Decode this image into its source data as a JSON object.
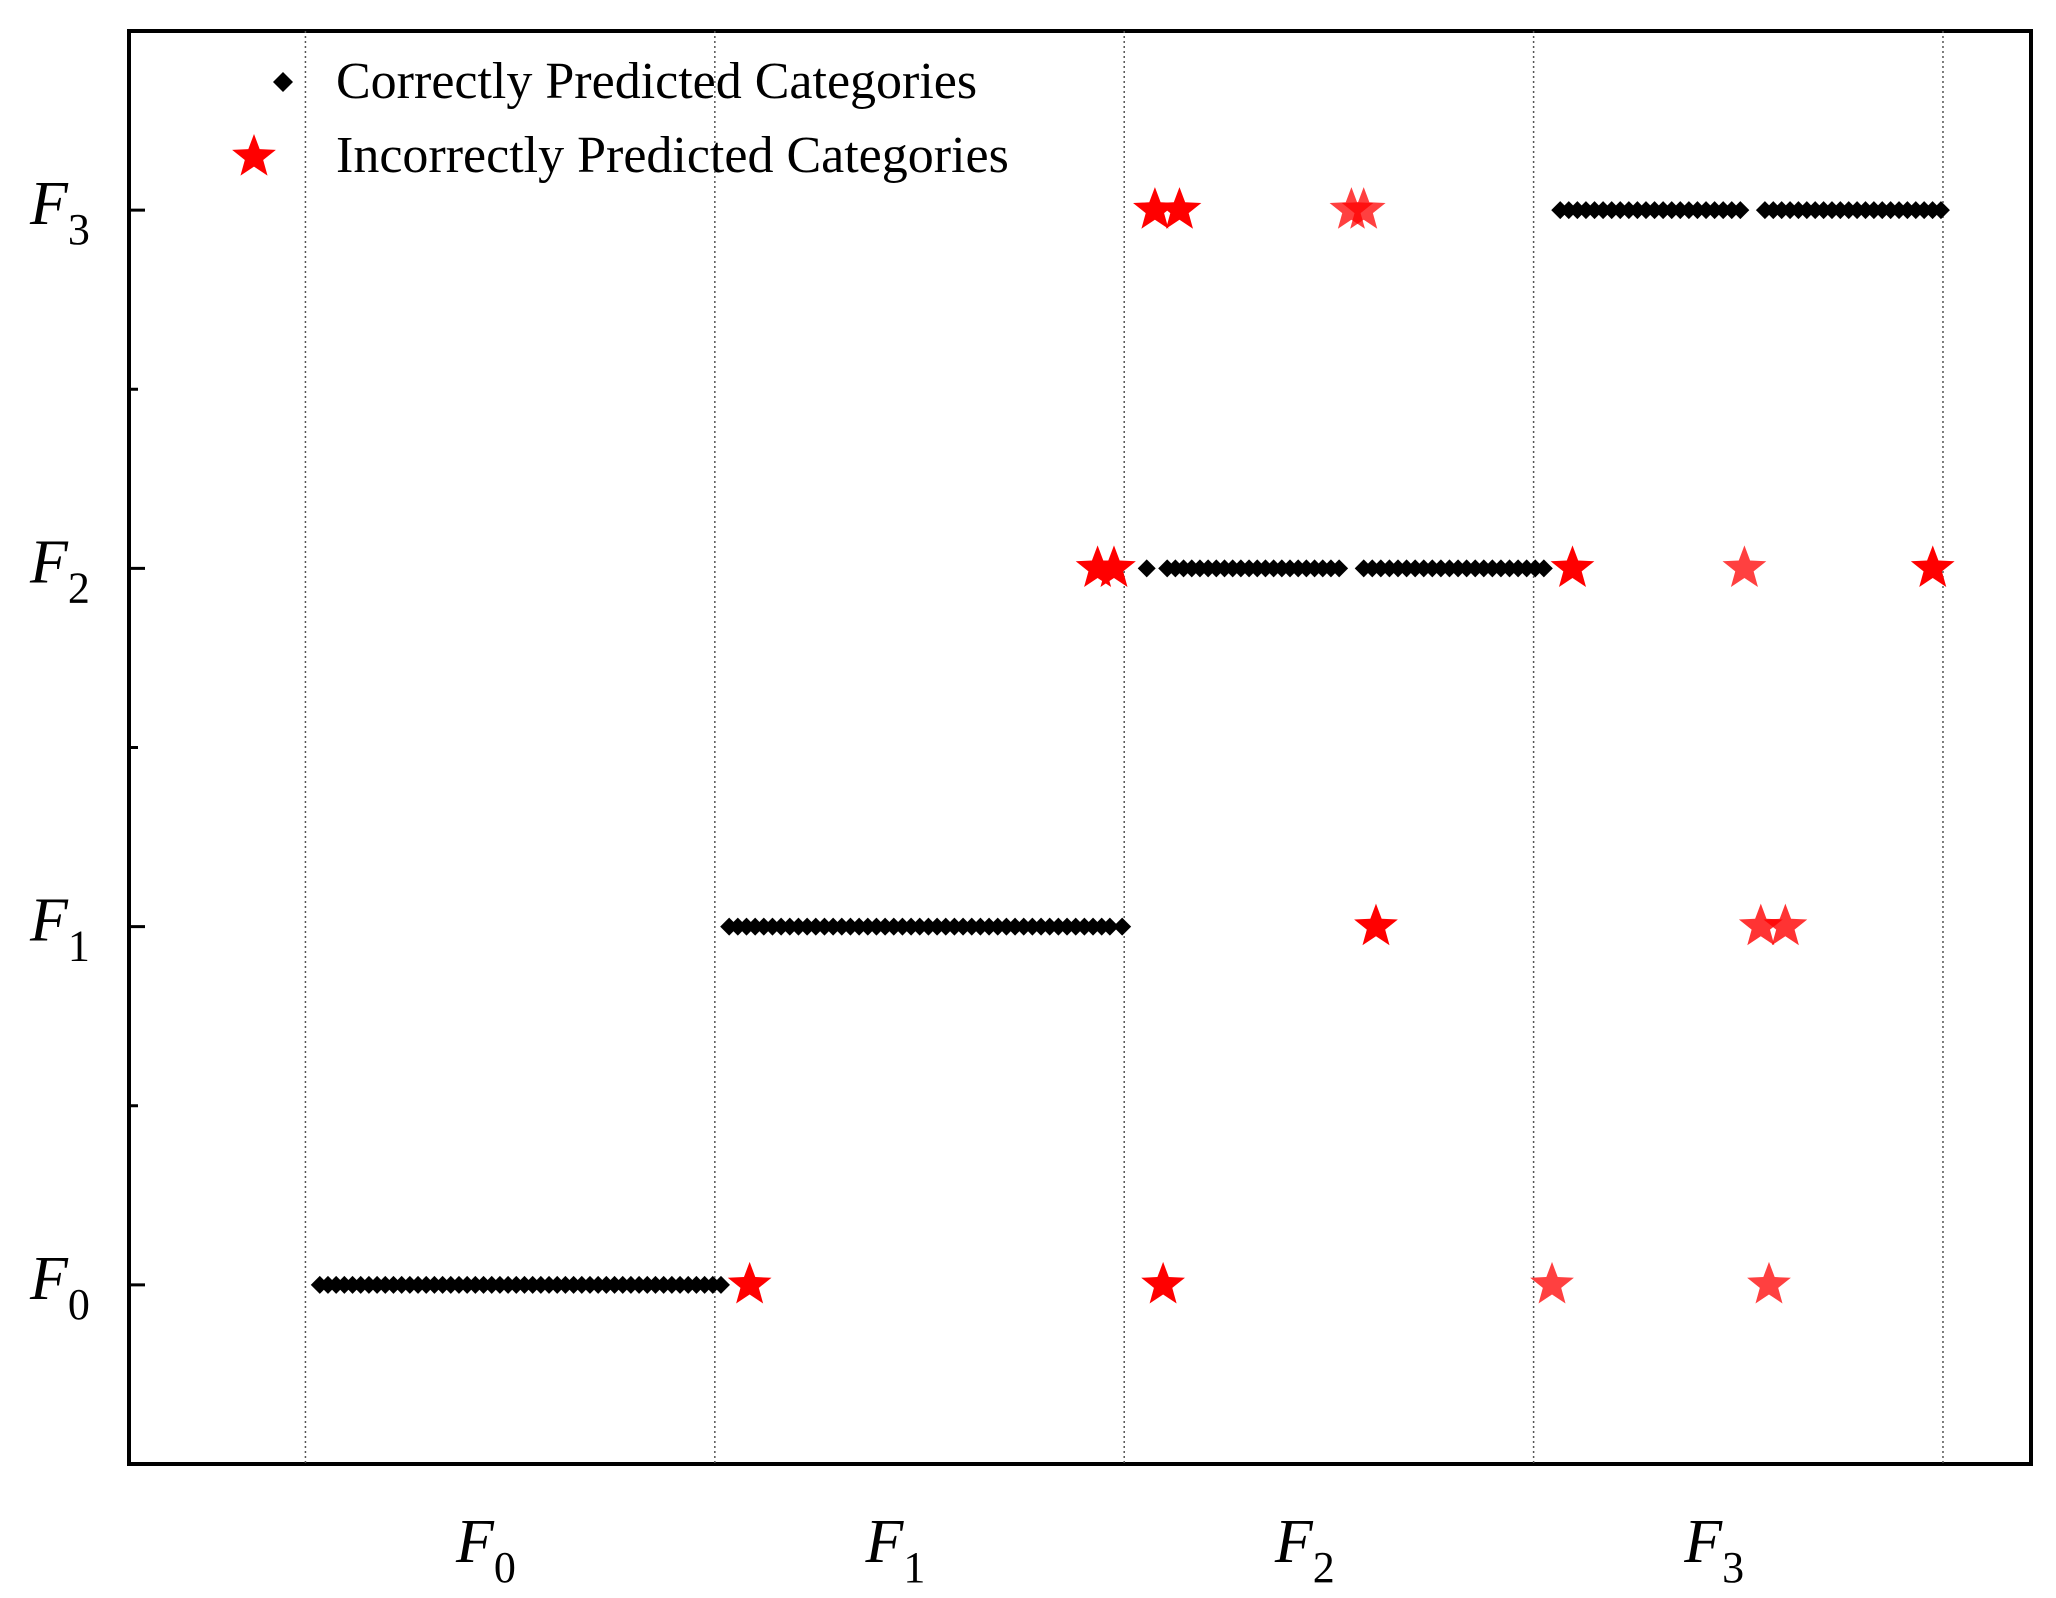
{
  "chart_data": {
    "type": "scatter",
    "title": "",
    "xlabel": "",
    "ylabel": "",
    "x_categories": [
      {
        "base": "F",
        "sub": "0"
      },
      {
        "base": "F",
        "sub": "1"
      },
      {
        "base": "F",
        "sub": "2"
      },
      {
        "base": "F",
        "sub": "3"
      }
    ],
    "y_categories": [
      {
        "base": "F",
        "sub": "0"
      },
      {
        "base": "F",
        "sub": "1"
      },
      {
        "base": "F",
        "sub": "2"
      },
      {
        "base": "F",
        "sub": "3"
      }
    ],
    "xlim": [
      -0.466,
      4.18
    ],
    "ylim": [
      -0.5,
      3.5
    ],
    "grid": "vertical dotted lines at class boundaries",
    "legend_position": "top-left",
    "series": [
      {
        "name": "Correctly Predicted Categories",
        "marker": "diamond",
        "color": "#000000",
        "segments": [
          {
            "class": 0,
            "x_start": 0.0,
            "x_end": 0.98,
            "count": 50
          },
          {
            "class": 1,
            "x_start": 1.0,
            "x_end": 1.91,
            "count": 44
          },
          {
            "class": 1,
            "x_start": 1.93,
            "x_end": 1.96,
            "count": 2
          },
          {
            "class": 2,
            "x_start": 2.02,
            "x_end": 2.02,
            "count": 1
          },
          {
            "class": 2,
            "x_start": 2.07,
            "x_end": 2.49,
            "count": 22
          },
          {
            "class": 2,
            "x_start": 2.55,
            "x_end": 2.99,
            "count": 22
          },
          {
            "class": 3,
            "x_start": 3.03,
            "x_end": 3.47,
            "count": 22
          },
          {
            "class": 3,
            "x_start": 3.53,
            "x_end": 3.96,
            "count": 22
          }
        ]
      },
      {
        "name": "Incorrectly Predicted Categories",
        "marker": "star",
        "color": "#ff0000",
        "points": [
          {
            "x": 1.05,
            "y": 0
          },
          {
            "x": 2.06,
            "y": 0
          },
          {
            "x": 3.01,
            "y": 0,
            "alpha": 0.75
          },
          {
            "x": 3.54,
            "y": 0,
            "alpha": 0.75
          },
          {
            "x": 2.58,
            "y": 1
          },
          {
            "x": 3.52,
            "y": 1,
            "alpha": 0.8
          },
          {
            "x": 3.58,
            "y": 1,
            "alpha": 0.8
          },
          {
            "x": 1.9,
            "y": 2
          },
          {
            "x": 1.94,
            "y": 2
          },
          {
            "x": 3.06,
            "y": 2
          },
          {
            "x": 3.48,
            "y": 2,
            "alpha": 0.75
          },
          {
            "x": 3.94,
            "y": 2
          },
          {
            "x": 2.04,
            "y": 3
          },
          {
            "x": 2.1,
            "y": 3
          },
          {
            "x": 2.52,
            "y": 3,
            "alpha": 0.75
          },
          {
            "x": 2.55,
            "y": 3,
            "alpha": 0.75
          }
        ]
      }
    ]
  }
}
